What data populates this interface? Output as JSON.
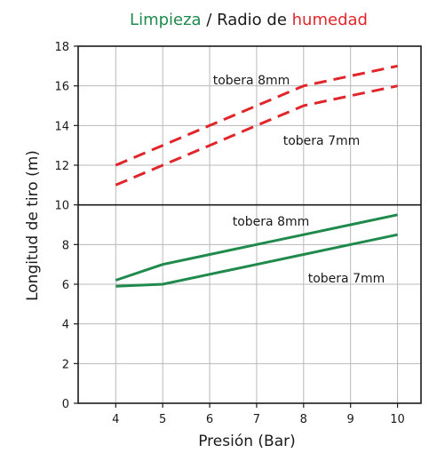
{
  "chart_data": {
    "type": "line",
    "title_parts": [
      {
        "text": "Limpieza",
        "color": "#1f8a4c"
      },
      {
        "text": " / Radio de ",
        "color": "#1a1a1a"
      },
      {
        "text": "humedad",
        "color": "#e0262a"
      }
    ],
    "xlabel": "Presión  (Bar)",
    "ylabel": "Longitud de tiro  (m)",
    "xlim": [
      3.2,
      10.5
    ],
    "ylim": [
      0,
      18
    ],
    "x_ticks": [
      4,
      5,
      6,
      7,
      8,
      9,
      10
    ],
    "y_ticks": [
      0,
      2,
      4,
      6,
      8,
      10,
      12,
      14,
      16,
      18
    ],
    "grid": true,
    "series": [
      {
        "name": "tobera 8mm",
        "group": "humedad",
        "color": "#e0262a",
        "style": "dashed",
        "x": [
          4,
          5,
          6,
          7,
          8,
          9,
          10
        ],
        "y": [
          12,
          13,
          14,
          15,
          16,
          16.5,
          17
        ]
      },
      {
        "name": "tobera 7mm",
        "group": "humedad",
        "color": "#e0262a",
        "style": "dashed",
        "x": [
          4,
          5,
          6,
          7,
          8,
          9,
          10
        ],
        "y": [
          11,
          12,
          13,
          14,
          15,
          15.5,
          16
        ]
      },
      {
        "name": "tobera 8mm",
        "group": "limpieza",
        "color": "#1f8a4c",
        "style": "solid",
        "x": [
          4,
          5,
          6,
          7,
          8,
          9,
          10
        ],
        "y": [
          6.2,
          7,
          7.5,
          8,
          8.5,
          9,
          9.5
        ]
      },
      {
        "name": "tobera 7mm",
        "group": "limpieza",
        "color": "#1f8a4c",
        "style": "solid",
        "x": [
          4,
          5,
          6,
          7,
          8,
          9,
          10
        ],
        "y": [
          5.9,
          6,
          6.5,
          7,
          7.5,
          8,
          8.5
        ]
      }
    ]
  }
}
